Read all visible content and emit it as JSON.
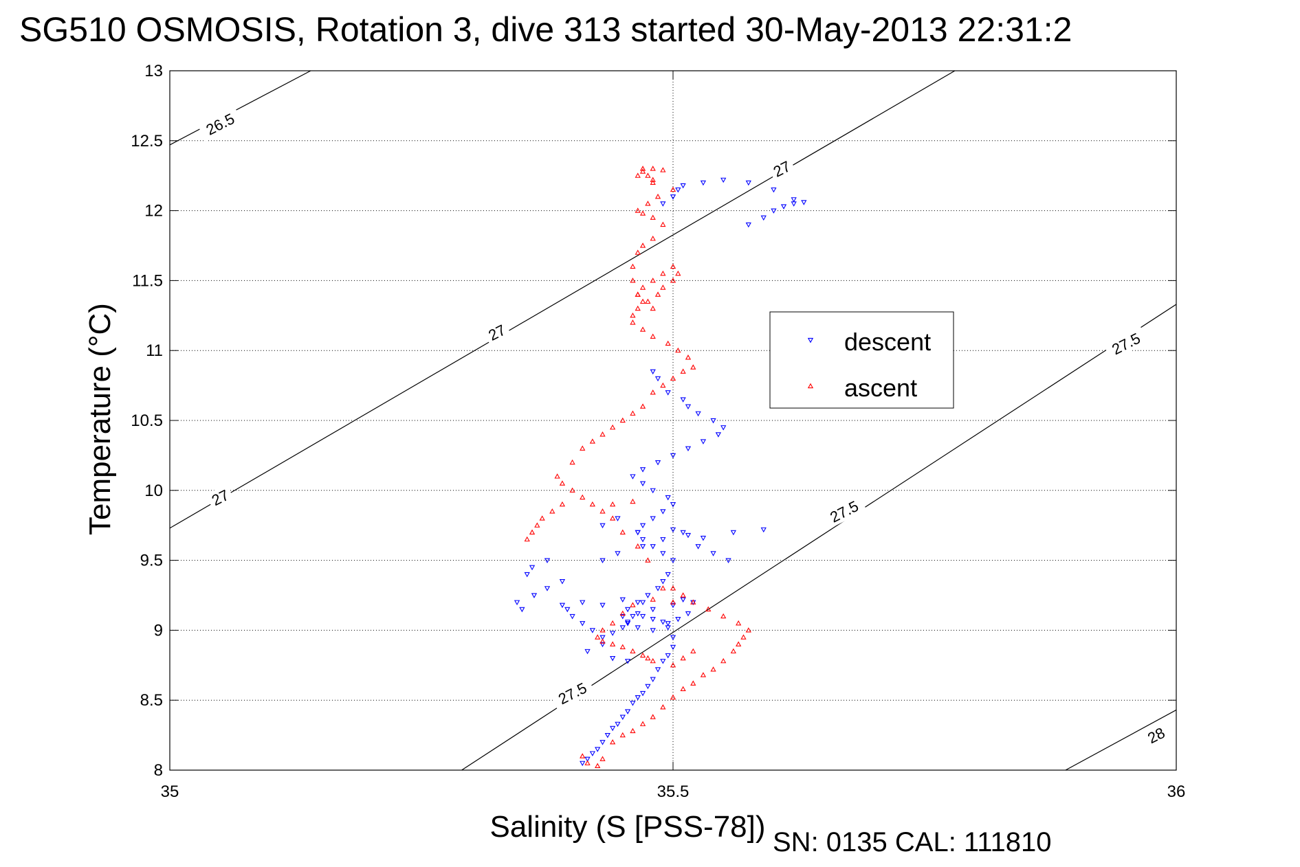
{
  "title": "SG510 OSMOSIS, Rotation 3, dive 313 started 30-May-2013 22:31:2",
  "footer": "SN: 0135  CAL: 111810",
  "colors": {
    "descent": "#0000ff",
    "ascent": "#ff0000",
    "axes": "#000000",
    "grid": "#000000",
    "contour": "#000000"
  },
  "chart_data": {
    "type": "scatter",
    "xlabel": "Salinity (S [PSS-78])",
    "ylabel": "Temperature (°C)",
    "xlim": [
      35,
      36
    ],
    "ylim": [
      8,
      13
    ],
    "xticks": [
      35,
      35.5,
      36
    ],
    "xtick_labels": [
      "35",
      "35.5",
      "36"
    ],
    "yticks": [
      8,
      8.5,
      9,
      9.5,
      10,
      10.5,
      11,
      11.5,
      12,
      12.5,
      13
    ],
    "ytick_labels": [
      "8",
      "8.5",
      "9",
      "9.5",
      "10",
      "10.5",
      "11",
      "11.5",
      "12",
      "12.5",
      "13"
    ],
    "grid": true,
    "legend_position": "center-right",
    "legend": [
      {
        "name": "descent",
        "marker": "triangle-down"
      },
      {
        "name": "ascent",
        "marker": "triangle-up"
      }
    ],
    "density_contours": [
      {
        "label": "26.5",
        "line": [
          [
            35,
            12.47
          ],
          [
            35.14,
            13
          ]
        ]
      },
      {
        "label": "27",
        "line": [
          [
            35,
            9.73
          ],
          [
            35.78,
            13
          ]
        ]
      },
      {
        "label": "27.5",
        "line": [
          [
            35.29,
            8
          ],
          [
            36,
            11.33
          ]
        ]
      },
      {
        "label": "28",
        "line": [
          [
            35.89,
            8
          ],
          [
            36,
            8.43
          ]
        ]
      }
    ],
    "contour_labels": [
      {
        "text": "26.5",
        "x": 35.05,
        "y": 12.62,
        "angle": -27
      },
      {
        "text": "27",
        "x": 35.608,
        "y": 12.3,
        "angle": -27
      },
      {
        "text": "27",
        "x": 35.325,
        "y": 11.13,
        "angle": -27
      },
      {
        "text": "27",
        "x": 35.05,
        "y": 9.95,
        "angle": -27
      },
      {
        "text": "27.5",
        "x": 35.95,
        "y": 11.05,
        "angle": -27
      },
      {
        "text": "27.5",
        "x": 35.67,
        "y": 9.85,
        "angle": -27
      },
      {
        "text": "27.5",
        "x": 35.4,
        "y": 8.55,
        "angle": -27
      },
      {
        "text": "28",
        "x": 35.98,
        "y": 8.25,
        "angle": -27
      }
    ],
    "series": [
      {
        "name": "descent",
        "marker": "triangle-down",
        "x": [
          35.41,
          35.415,
          35.42,
          35.425,
          35.43,
          35.435,
          35.44,
          35.445,
          35.45,
          35.455,
          35.46,
          35.465,
          35.47,
          35.475,
          35.48,
          35.485,
          35.49,
          35.495,
          35.5,
          35.5,
          35.495,
          35.49,
          35.48,
          35.47,
          35.465,
          35.46,
          35.455,
          35.45,
          35.44,
          35.43,
          35.42,
          35.41,
          35.4,
          35.395,
          35.39,
          35.41,
          35.43,
          35.45,
          35.47,
          35.48,
          35.5,
          35.51,
          35.52,
          35.515,
          35.505,
          35.495,
          35.48,
          35.465,
          35.455,
          35.45,
          35.455,
          35.465,
          35.475,
          35.485,
          35.49,
          35.495,
          35.5,
          35.49,
          35.48,
          35.47,
          35.465,
          35.47,
          35.48,
          35.49,
          35.5,
          35.495,
          35.48,
          35.47,
          35.46,
          35.47,
          35.485,
          35.5,
          35.515,
          35.53,
          35.545,
          35.55,
          35.54,
          35.525,
          35.515,
          35.51,
          35.495,
          35.485,
          35.48,
          35.375,
          35.36,
          35.355,
          35.345,
          35.35,
          35.362,
          35.375,
          35.39,
          35.43,
          35.445,
          35.47,
          35.49,
          35.51,
          35.525,
          35.54,
          35.555,
          35.575,
          35.59,
          35.6,
          35.61,
          35.62,
          35.63,
          35.62,
          35.6,
          35.575,
          35.55,
          35.53,
          35.51,
          35.505,
          35.5,
          35.49,
          35.43,
          35.445,
          35.465,
          35.5,
          35.515,
          35.53,
          35.56,
          35.59,
          35.415,
          35.43,
          35.44,
          35.455
        ],
        "y": [
          8.05,
          8.08,
          8.12,
          8.15,
          8.2,
          8.25,
          8.3,
          8.33,
          8.38,
          8.42,
          8.48,
          8.52,
          8.55,
          8.6,
          8.65,
          8.72,
          8.78,
          8.82,
          8.88,
          8.95,
          9.02,
          9.06,
          9.08,
          9.1,
          9.12,
          9.1,
          9.05,
          9.02,
          8.98,
          8.95,
          9.0,
          9.05,
          9.1,
          9.15,
          9.18,
          9.2,
          9.18,
          9.22,
          9.2,
          9.15,
          9.18,
          9.22,
          9.2,
          9.12,
          9.08,
          9.05,
          9.0,
          9.02,
          9.06,
          9.1,
          9.15,
          9.2,
          9.25,
          9.3,
          9.35,
          9.4,
          9.5,
          9.55,
          9.6,
          9.65,
          9.7,
          9.75,
          9.8,
          9.85,
          9.9,
          9.95,
          10.0,
          10.05,
          10.1,
          10.15,
          10.2,
          10.25,
          10.3,
          10.35,
          10.4,
          10.45,
          10.5,
          10.55,
          10.6,
          10.65,
          10.7,
          10.8,
          10.85,
          9.5,
          9.45,
          9.4,
          9.2,
          9.15,
          9.25,
          9.3,
          9.35,
          9.5,
          9.55,
          9.6,
          9.65,
          9.7,
          9.6,
          9.55,
          9.5,
          11.9,
          11.95,
          12.0,
          12.03,
          12.05,
          12.06,
          12.08,
          12.15,
          12.2,
          12.22,
          12.2,
          12.18,
          12.15,
          12.1,
          12.05,
          9.75,
          9.8,
          9.7,
          9.72,
          9.68,
          9.66,
          9.7,
          9.72,
          8.85,
          8.9,
          8.8,
          8.78
        ]
      },
      {
        "name": "ascent",
        "marker": "triangle-up",
        "x": [
          35.41,
          35.415,
          35.425,
          35.43,
          35.44,
          35.45,
          35.46,
          35.47,
          35.48,
          35.49,
          35.5,
          35.51,
          35.52,
          35.53,
          35.54,
          35.55,
          35.56,
          35.565,
          35.57,
          35.575,
          35.565,
          35.55,
          35.535,
          35.52,
          35.51,
          35.5,
          35.48,
          35.46,
          35.45,
          35.44,
          35.43,
          35.425,
          35.43,
          35.44,
          35.45,
          35.46,
          35.47,
          35.475,
          35.48,
          35.5,
          35.51,
          35.52,
          35.5,
          35.49,
          35.475,
          35.465,
          35.45,
          35.44,
          35.43,
          35.42,
          35.41,
          35.4,
          35.39,
          35.385,
          35.4,
          35.41,
          35.42,
          35.43,
          35.44,
          35.45,
          35.46,
          35.47,
          35.48,
          35.49,
          35.5,
          35.51,
          35.52,
          35.515,
          35.505,
          35.495,
          35.48,
          35.47,
          35.46,
          35.46,
          35.465,
          35.475,
          35.485,
          35.49,
          35.5,
          35.505,
          35.5,
          35.49,
          35.48,
          35.47,
          35.465,
          35.47,
          35.48,
          35.465,
          35.46,
          35.46,
          35.465,
          35.47,
          35.48,
          35.49,
          35.48,
          35.47,
          35.465,
          35.475,
          35.485,
          35.5,
          35.48,
          35.465,
          35.47,
          35.48,
          35.49,
          35.47,
          35.475,
          35.48,
          35.37,
          35.365,
          35.36,
          35.355,
          35.38,
          35.39,
          35.44,
          35.46
        ],
        "y": [
          8.1,
          8.05,
          8.03,
          8.08,
          8.2,
          8.25,
          8.28,
          8.33,
          8.38,
          8.45,
          8.52,
          8.58,
          8.62,
          8.68,
          8.72,
          8.78,
          8.85,
          8.9,
          8.95,
          9.0,
          9.05,
          9.1,
          9.15,
          9.2,
          9.25,
          9.3,
          9.22,
          9.18,
          9.12,
          9.05,
          9.0,
          8.95,
          8.92,
          8.9,
          8.88,
          8.85,
          8.82,
          8.8,
          8.78,
          8.75,
          8.8,
          8.85,
          9.2,
          9.3,
          9.5,
          9.6,
          9.7,
          9.8,
          9.85,
          9.9,
          9.95,
          10.0,
          10.05,
          10.1,
          10.2,
          10.3,
          10.35,
          10.4,
          10.45,
          10.5,
          10.55,
          10.6,
          10.7,
          10.75,
          10.8,
          10.85,
          10.88,
          10.95,
          11.0,
          11.05,
          11.1,
          11.15,
          11.2,
          11.25,
          11.3,
          11.35,
          11.4,
          11.45,
          11.5,
          11.55,
          11.6,
          11.55,
          11.5,
          11.45,
          11.4,
          11.35,
          11.3,
          11.4,
          11.5,
          11.6,
          11.7,
          11.75,
          11.8,
          11.9,
          11.95,
          11.98,
          12.0,
          12.05,
          12.1,
          12.15,
          12.2,
          12.25,
          12.28,
          12.3,
          12.29,
          12.3,
          12.25,
          12.22,
          9.8,
          9.75,
          9.7,
          9.65,
          9.85,
          9.9,
          9.9,
          9.92
        ]
      }
    ]
  }
}
